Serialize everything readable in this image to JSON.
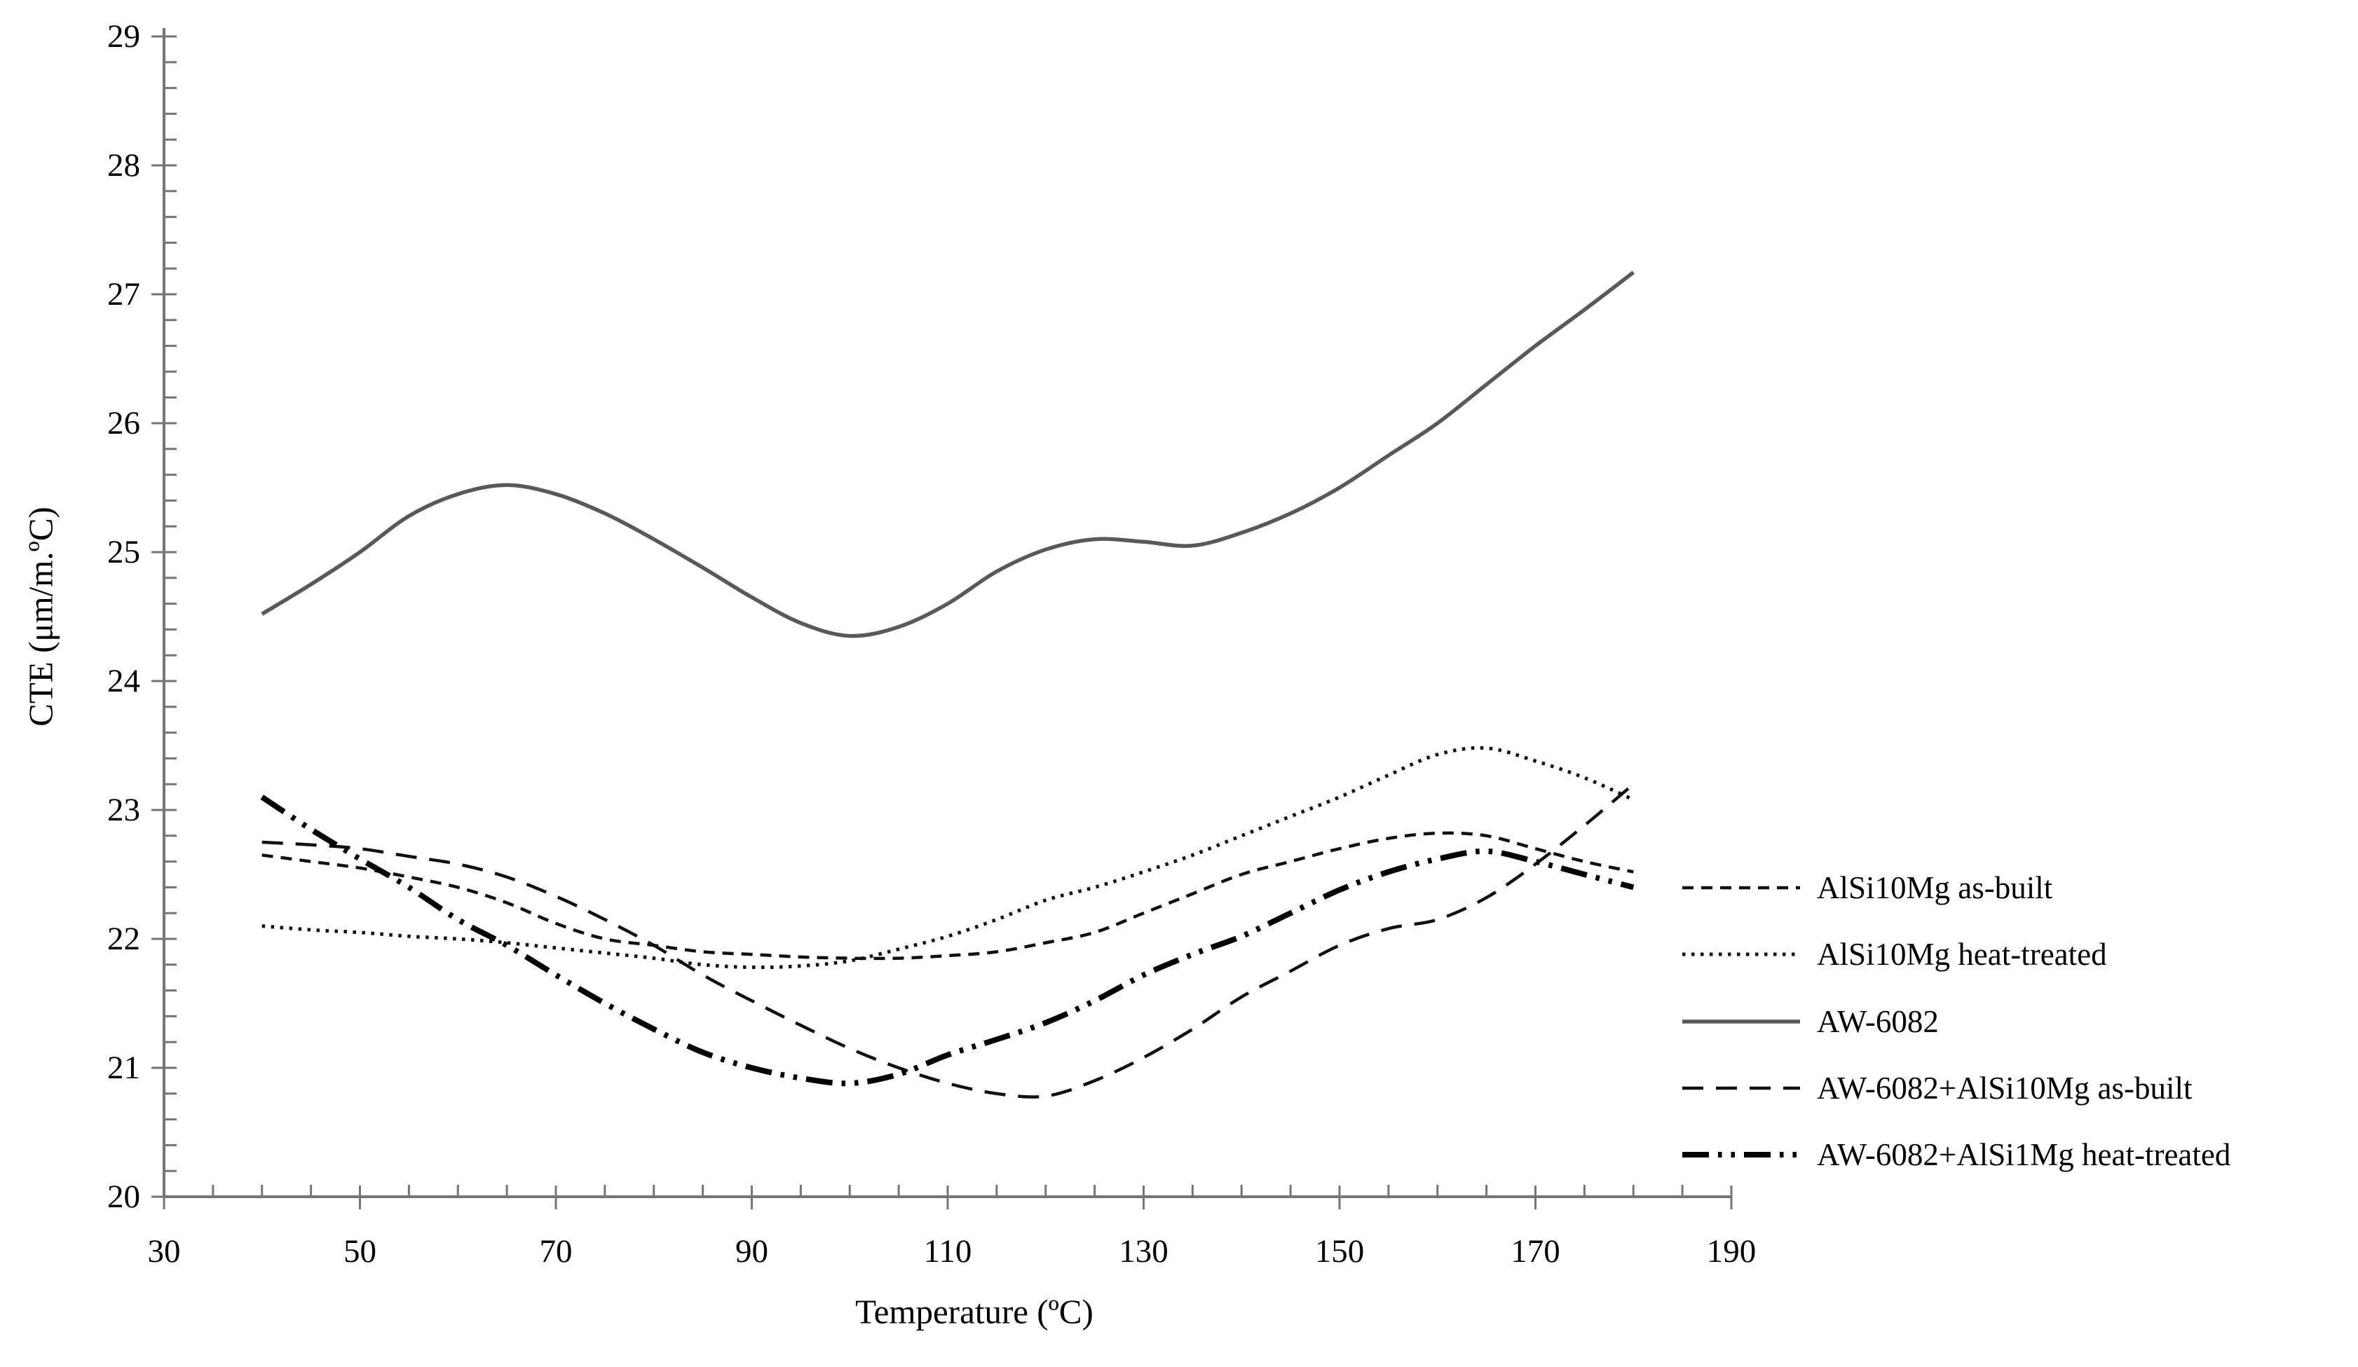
{
  "chart_data": {
    "type": "line",
    "title": "",
    "xlabel": "Temperature (ºC)",
    "ylabel": "CTE (μm/m.ºC)",
    "grid": false,
    "legend_position": "right-middle",
    "background_color": "#ffffff",
    "axis_color": "#757575",
    "x_axis": {
      "min": 30,
      "max": 190,
      "major_tick": 20,
      "minor_tick": 5,
      "labels": [
        "30",
        "50",
        "70",
        "90",
        "110",
        "130",
        "150",
        "170",
        "190"
      ]
    },
    "y_axis": {
      "min": 20,
      "max": 29,
      "major_tick": 1,
      "minor_tick": 0.2,
      "labels": [
        "20",
        "21",
        "22",
        "23",
        "24",
        "25",
        "26",
        "27",
        "28",
        "29"
      ]
    },
    "x": [
      40,
      45,
      50,
      55,
      60,
      65,
      70,
      75,
      80,
      85,
      90,
      95,
      100,
      105,
      110,
      115,
      120,
      125,
      130,
      135,
      140,
      145,
      150,
      155,
      160,
      165,
      170,
      175,
      180
    ],
    "series": [
      {
        "name": "AlSi10Mg as-built",
        "line": {
          "color": "#111111",
          "width": 4.5,
          "pattern": "16 11"
        },
        "values": [
          22.65,
          22.6,
          22.55,
          22.48,
          22.4,
          22.28,
          22.12,
          22.0,
          21.95,
          21.9,
          21.88,
          21.86,
          21.85,
          21.85,
          21.87,
          21.9,
          21.97,
          22.05,
          22.2,
          22.35,
          22.5,
          22.6,
          22.7,
          22.78,
          22.82,
          22.8,
          22.7,
          22.6,
          22.52
        ]
      },
      {
        "name": "AlSi10Mg heat-treated",
        "line": {
          "color": "#111111",
          "width": 5,
          "pattern": "4.5 8.5"
        },
        "values": [
          22.1,
          22.07,
          22.05,
          22.02,
          22.0,
          21.97,
          21.93,
          21.89,
          21.85,
          21.8,
          21.78,
          21.79,
          21.83,
          21.92,
          22.02,
          22.15,
          22.3,
          22.4,
          22.52,
          22.65,
          22.8,
          22.95,
          23.1,
          23.27,
          23.43,
          23.48,
          23.38,
          23.25,
          23.08
        ]
      },
      {
        "name": "AW-6082",
        "line": {
          "color": "#595959",
          "width": 5.5,
          "pattern": ""
        },
        "values": [
          24.52,
          24.75,
          25.0,
          25.28,
          25.45,
          25.52,
          25.45,
          25.3,
          25.1,
          24.88,
          24.65,
          24.45,
          24.35,
          24.42,
          24.6,
          24.85,
          25.02,
          25.1,
          25.08,
          25.05,
          25.15,
          25.3,
          25.5,
          25.75,
          26.0,
          26.3,
          26.6,
          26.88,
          27.17
        ]
      },
      {
        "name": "AW-6082+AlSi10Mg as-built",
        "line": {
          "color": "#111111",
          "width": 4.5,
          "pattern": "30 18"
        },
        "values": [
          22.75,
          22.73,
          22.7,
          22.64,
          22.58,
          22.48,
          22.33,
          22.15,
          21.95,
          21.72,
          21.52,
          21.33,
          21.15,
          21.0,
          20.88,
          20.8,
          20.78,
          20.9,
          21.08,
          21.3,
          21.55,
          21.75,
          21.95,
          22.08,
          22.15,
          22.32,
          22.58,
          22.88,
          23.2
        ]
      },
      {
        "name": "AW-6082+AlSi1Mg heat-treated",
        "line": {
          "color": "#000000",
          "width": 8,
          "pattern": "38 13 5.5 13 5.5 13"
        },
        "values": [
          23.1,
          22.85,
          22.62,
          22.4,
          22.15,
          21.95,
          21.72,
          21.5,
          21.3,
          21.12,
          21.0,
          20.92,
          20.88,
          20.95,
          21.1,
          21.22,
          21.35,
          21.52,
          21.72,
          21.88,
          22.02,
          22.2,
          22.38,
          22.52,
          22.62,
          22.68,
          22.6,
          22.5,
          22.4
        ]
      }
    ]
  }
}
